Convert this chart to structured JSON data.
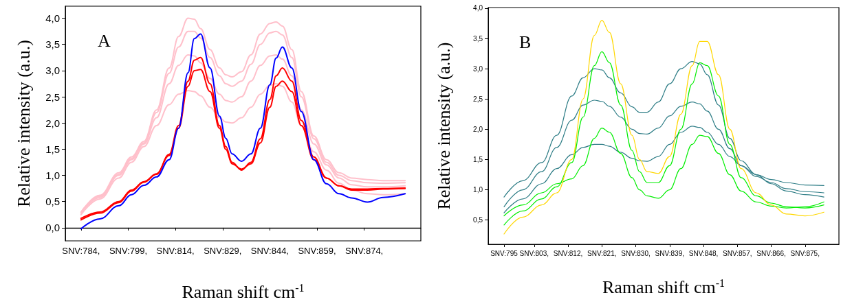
{
  "chart_data": [
    {
      "type": "line",
      "title": "A",
      "xlabel": "Raman shift cm$^{-1}$",
      "ylabel": "Relative intensity (a.u.)",
      "grid": false,
      "marker": "none",
      "line_style": "solid",
      "xlim": [
        779,
        892
      ],
      "ylim": [
        -0.25,
        4.23
      ],
      "xticks": [
        {
          "value": 784,
          "label": "SNV:784,"
        },
        {
          "value": 799,
          "label": "SNV:799,"
        },
        {
          "value": 814,
          "label": "SNV:814,"
        },
        {
          "value": 829,
          "label": "SNV:829,"
        },
        {
          "value": 844,
          "label": "SNV:844,"
        },
        {
          "value": 859,
          "label": "SNV:859,"
        },
        {
          "value": 874,
          "label": "SNV:874,"
        }
      ],
      "yticks": [
        {
          "value": 0,
          "label": "0,0"
        },
        {
          "value": 0.5,
          "label": "0,5"
        },
        {
          "value": 1,
          "label": "1,0"
        },
        {
          "value": 1.5,
          "label": "1,5"
        },
        {
          "value": 2,
          "label": "2,0"
        },
        {
          "value": 2.5,
          "label": "2,5"
        },
        {
          "value": 3,
          "label": "3,0"
        },
        {
          "value": 3.5,
          "label": "3,5"
        },
        {
          "value": 4,
          "label": "4,0"
        }
      ],
      "ref_lines": [
        {
          "axis": "y",
          "value": 0,
          "color": "#000000"
        }
      ],
      "x": [
        784,
        790,
        796,
        800,
        804,
        808,
        812,
        815,
        818,
        820,
        822,
        825,
        828,
        830,
        832,
        835,
        838,
        841,
        844,
        846,
        848,
        851,
        854,
        858,
        862,
        866,
        870,
        875,
        880,
        887
      ],
      "series": [
        {
          "color": "#ffc0cb",
          "values": [
            0.3,
            0.62,
            1.05,
            1.35,
            1.65,
            2.25,
            3.05,
            3.65,
            4.0,
            3.98,
            3.8,
            3.4,
            3.05,
            2.92,
            2.88,
            2.98,
            3.3,
            3.7,
            3.9,
            3.93,
            3.85,
            3.4,
            2.6,
            1.75,
            1.3,
            1.05,
            0.95,
            0.92,
            0.9,
            0.9
          ]
        },
        {
          "color": "#ffc0cb",
          "values": [
            0.3,
            0.6,
            1.02,
            1.32,
            1.62,
            2.2,
            2.95,
            3.45,
            3.75,
            3.75,
            3.62,
            3.25,
            2.9,
            2.75,
            2.7,
            2.8,
            3.12,
            3.5,
            3.72,
            3.75,
            3.68,
            3.25,
            2.5,
            1.7,
            1.25,
            1.0,
            0.9,
            0.86,
            0.85,
            0.86
          ]
        },
        {
          "color": "#ffc0cb",
          "values": [
            0.28,
            0.58,
            1.0,
            1.3,
            1.6,
            2.1,
            2.75,
            3.1,
            3.3,
            3.28,
            3.15,
            2.85,
            2.55,
            2.43,
            2.4,
            2.5,
            2.8,
            3.1,
            3.28,
            3.3,
            3.22,
            2.9,
            2.25,
            1.6,
            1.2,
            0.95,
            0.82,
            0.78,
            0.78,
            0.8
          ]
        },
        {
          "color": "#ffc0cb",
          "values": [
            0.25,
            0.55,
            0.95,
            1.25,
            1.55,
            1.95,
            2.35,
            2.55,
            2.62,
            2.6,
            2.52,
            2.3,
            2.1,
            2.02,
            2.0,
            2.1,
            2.3,
            2.55,
            2.72,
            2.75,
            2.7,
            2.4,
            1.95,
            1.45,
            1.1,
            0.85,
            0.72,
            0.65,
            0.63,
            0.65
          ]
        },
        {
          "color": "#ff0000",
          "values": [
            0.15,
            0.28,
            0.48,
            0.7,
            0.87,
            1.02,
            1.4,
            1.95,
            2.8,
            3.2,
            3.25,
            2.75,
            1.95,
            1.55,
            1.25,
            1.1,
            1.25,
            1.7,
            2.45,
            2.9,
            3.05,
            2.8,
            2.05,
            1.35,
            0.95,
            0.8,
            0.72,
            0.72,
            0.74,
            0.75
          ]
        },
        {
          "color": "#ff0000",
          "values": [
            0.18,
            0.3,
            0.5,
            0.72,
            0.88,
            1.03,
            1.38,
            1.9,
            2.7,
            3.0,
            3.02,
            2.6,
            1.9,
            1.5,
            1.22,
            1.12,
            1.22,
            1.62,
            2.3,
            2.7,
            2.8,
            2.6,
            1.95,
            1.3,
            0.95,
            0.8,
            0.74,
            0.74,
            0.75,
            0.76
          ]
        },
        {
          "color": "#0000ff",
          "values": [
            -0.02,
            0.17,
            0.42,
            0.63,
            0.81,
            0.97,
            1.3,
            1.9,
            2.96,
            3.61,
            3.7,
            3.05,
            2.13,
            1.71,
            1.41,
            1.27,
            1.41,
            1.9,
            2.73,
            3.24,
            3.45,
            3.05,
            2.22,
            1.3,
            0.84,
            0.65,
            0.57,
            0.49,
            0.58,
            0.65
          ]
        }
      ]
    },
    {
      "type": "line",
      "title": "B",
      "xlabel": "Raman shift cm$^{-1}$",
      "ylabel": "Relative intensity (a.u.)",
      "grid": false,
      "marker": "none",
      "line_style": "solid",
      "xlim": [
        790.8,
        884
      ],
      "ylim": [
        0.1,
        4.01
      ],
      "xticks": [
        {
          "value": 795,
          "label": "SNV:795"
        },
        {
          "value": 803,
          "label": "SNV:803,"
        },
        {
          "value": 812,
          "label": "SNV:812,"
        },
        {
          "value": 821,
          "label": "SNV:821,"
        },
        {
          "value": 830,
          "label": "SNV:830,"
        },
        {
          "value": 839,
          "label": "SNV:839,"
        },
        {
          "value": 848,
          "label": "SNV:848,"
        },
        {
          "value": 857,
          "label": "SNV:857,"
        },
        {
          "value": 866,
          "label": "SNV:866,"
        },
        {
          "value": 875,
          "label": "SNV:875,"
        }
      ],
      "yticks": [
        {
          "value": 0.5,
          "label": "0,5"
        },
        {
          "value": 1,
          "label": "1,0"
        },
        {
          "value": 1.5,
          "label": "1,5"
        },
        {
          "value": 2,
          "label": "2,0"
        },
        {
          "value": 2.5,
          "label": "2,5"
        },
        {
          "value": 3,
          "label": "3,0"
        },
        {
          "value": 3.5,
          "label": "3,5"
        },
        {
          "value": 4,
          "label": "4,0"
        }
      ],
      "x": [
        795,
        800,
        805,
        809,
        813,
        816,
        819,
        821,
        823,
        826,
        829,
        831,
        833,
        836,
        839,
        842,
        845,
        847,
        849,
        852,
        855,
        858,
        862,
        866,
        870,
        875,
        880
      ],
      "series": [
        {
          "color": "#2e7d86",
          "values": [
            0.88,
            1.15,
            1.45,
            1.9,
            2.55,
            2.85,
            3.0,
            2.98,
            2.85,
            2.6,
            2.37,
            2.28,
            2.28,
            2.45,
            2.75,
            3.0,
            3.12,
            3.08,
            2.9,
            2.4,
            1.85,
            1.48,
            1.25,
            1.17,
            1.12,
            1.08,
            1.07
          ]
        },
        {
          "color": "#2e7d86",
          "values": [
            0.72,
            1.0,
            1.3,
            1.7,
            2.15,
            2.4,
            2.48,
            2.46,
            2.38,
            2.2,
            2.0,
            1.93,
            1.92,
            2.02,
            2.22,
            2.38,
            2.45,
            2.42,
            2.3,
            2.0,
            1.68,
            1.4,
            1.22,
            1.12,
            1.02,
            0.97,
            0.95
          ]
        },
        {
          "color": "#2e7d86",
          "values": [
            0.62,
            0.85,
            1.1,
            1.35,
            1.58,
            1.7,
            1.75,
            1.75,
            1.72,
            1.62,
            1.52,
            1.48,
            1.47,
            1.55,
            1.75,
            1.95,
            2.05,
            2.03,
            1.95,
            1.75,
            1.55,
            1.4,
            1.25,
            1.1,
            0.98,
            0.92,
            0.88
          ]
        },
        {
          "color": "#00ee00",
          "values": [
            0.42,
            0.65,
            0.85,
            1.05,
            1.45,
            2.2,
            3.05,
            3.28,
            3.1,
            2.4,
            1.65,
            1.3,
            1.12,
            1.12,
            1.4,
            2.0,
            2.75,
            3.1,
            3.05,
            2.55,
            1.75,
            1.2,
            0.9,
            0.78,
            0.72,
            0.7,
            0.75
          ]
        },
        {
          "color": "#00ee00",
          "values": [
            0.57,
            0.75,
            0.95,
            1.1,
            1.18,
            1.4,
            1.85,
            2.02,
            1.95,
            1.6,
            1.2,
            1.0,
            0.9,
            0.86,
            1.0,
            1.35,
            1.75,
            1.9,
            1.88,
            1.6,
            1.25,
            0.98,
            0.8,
            0.73,
            0.7,
            0.72,
            0.8
          ]
        },
        {
          "color": "#ffd700",
          "values": [
            0.27,
            0.55,
            0.75,
            0.95,
            1.5,
            2.5,
            3.55,
            3.8,
            3.6,
            2.75,
            1.9,
            1.5,
            1.3,
            1.27,
            1.55,
            2.25,
            3.05,
            3.45,
            3.45,
            2.9,
            2.0,
            1.35,
            0.95,
            0.75,
            0.6,
            0.57,
            0.63
          ]
        }
      ]
    }
  ]
}
